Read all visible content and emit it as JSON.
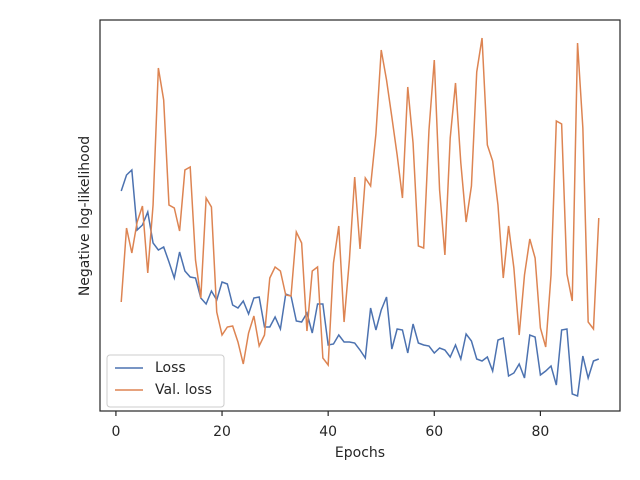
{
  "chart_data": {
    "type": "line",
    "xlabel": "Epochs",
    "ylabel": "Negative log-likelihood",
    "x": [
      1,
      2,
      3,
      4,
      5,
      6,
      7,
      8,
      9,
      10,
      11,
      12,
      13,
      14,
      15,
      16,
      17,
      18,
      19,
      20,
      21,
      22,
      23,
      24,
      25,
      26,
      27,
      28,
      29,
      30,
      31,
      32,
      33,
      34,
      35,
      36,
      37,
      38,
      39,
      40,
      41,
      42,
      43,
      44,
      45,
      46,
      47,
      48,
      49,
      50,
      51,
      52,
      53,
      54,
      55,
      56,
      57,
      58,
      59,
      60,
      61,
      62,
      63,
      64,
      65,
      66,
      67,
      68,
      69,
      70,
      71,
      72,
      73,
      74,
      75,
      76,
      77,
      78,
      79,
      80,
      81,
      82,
      83,
      84,
      85,
      86,
      87,
      88,
      89,
      90,
      91
    ],
    "series": [
      {
        "name": "Loss",
        "color": "#4c72b0",
        "values": [
          220,
          236,
          241,
          181,
          186,
          199,
          168,
          161,
          164,
          149,
          133,
          159,
          140,
          134,
          133,
          113,
          107,
          120,
          111,
          129,
          127,
          106,
          103,
          110,
          97,
          113,
          114,
          84,
          84,
          94,
          82,
          117,
          115,
          90,
          89,
          98,
          78,
          107,
          107,
          66,
          67,
          76,
          69,
          69,
          68,
          61,
          53,
          103,
          81,
          101,
          114,
          62,
          82,
          81,
          58,
          87,
          68,
          66,
          65,
          58,
          63,
          61,
          54,
          66,
          52,
          77,
          70,
          52,
          50,
          54,
          40,
          71,
          73,
          35,
          38,
          47,
          33,
          76,
          74,
          36,
          40,
          45,
          26,
          81,
          82,
          17,
          15,
          55,
          33,
          50,
          52
        ]
      },
      {
        "name": "Val. loss",
        "color": "#dd8452",
        "values": [
          109,
          183,
          158,
          189,
          205,
          138,
          206,
          343,
          311,
          206,
          203,
          180,
          241,
          244,
          151,
          113,
          213,
          204,
          99,
          76,
          84,
          85,
          69,
          47,
          78,
          95,
          65,
          76,
          133,
          144,
          140,
          116,
          115,
          179,
          168,
          80,
          140,
          144,
          53,
          46,
          148,
          185,
          89,
          151,
          234,
          162,
          233,
          225,
          277,
          361,
          331,
          294,
          256,
          213,
          324,
          268,
          165,
          163,
          281,
          351,
          221,
          156,
          273,
          328,
          248,
          189,
          225,
          339,
          373,
          266,
          250,
          206,
          133,
          185,
          143,
          76,
          136,
          172,
          153,
          83,
          64,
          136,
          290,
          287,
          137,
          110,
          368,
          283,
          89,
          82,
          193
        ]
      }
    ],
    "xlim": [
      -3,
      95
    ],
    "xticks": [
      0,
      20,
      40,
      60,
      80
    ],
    "ylim": [
      0,
      391
    ],
    "legend": "lower left"
  }
}
